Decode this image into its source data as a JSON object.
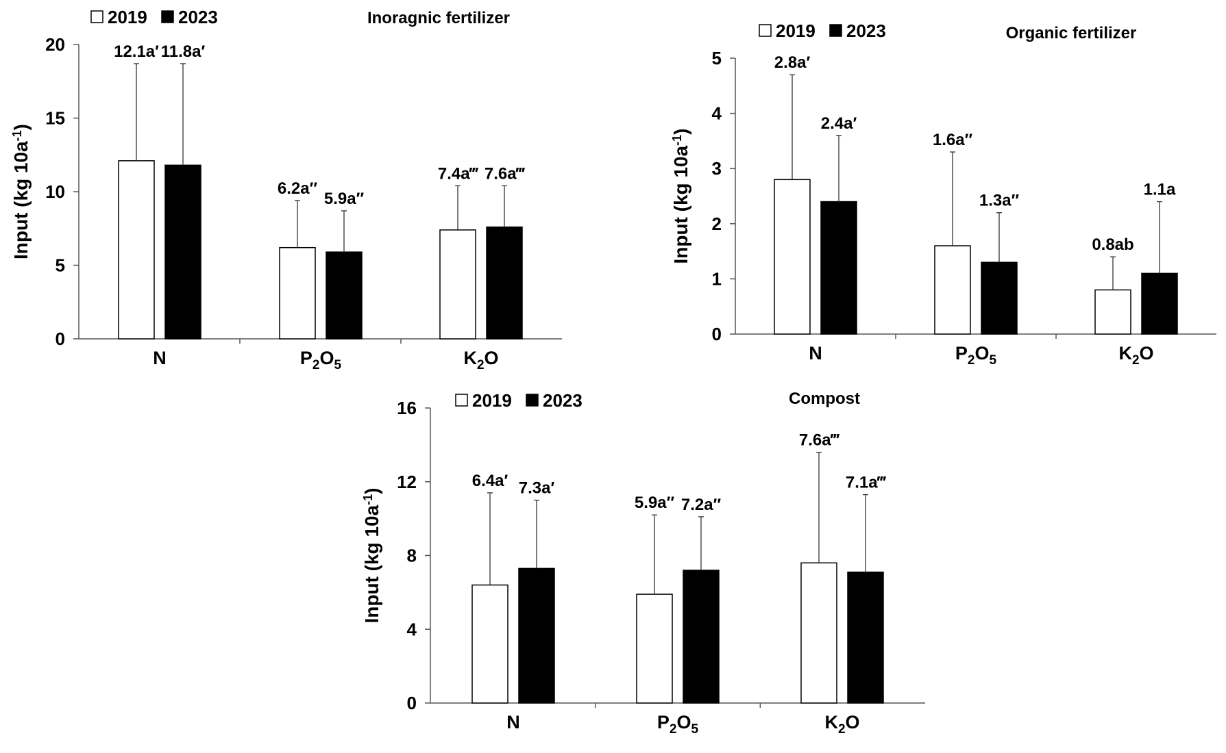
{
  "colors": {
    "y2019": "#ffffff",
    "y2023": "#000000",
    "stroke": "#000000",
    "axis": "#555555"
  },
  "chart_data": [
    {
      "type": "bar",
      "title": "Inoragnic fertilizer",
      "ylabel": "Input (kg 10a",
      "ylabel_sup": "-1",
      "ylabel_close": ")",
      "ylim": [
        0,
        20
      ],
      "yticks": [
        0,
        5,
        10,
        15,
        20
      ],
      "categories": [
        {
          "base": "N",
          "parts": [
            [
              "N",
              false
            ]
          ]
        },
        {
          "base": "P2O5",
          "parts": [
            [
              "P",
              false
            ],
            [
              "2",
              true
            ],
            [
              "O",
              false
            ],
            [
              "5",
              true
            ]
          ]
        },
        {
          "base": "K2O",
          "parts": [
            [
              "K",
              false
            ],
            [
              "2",
              true
            ],
            [
              "O",
              false
            ]
          ]
        }
      ],
      "series": [
        {
          "name": "2019",
          "values": [
            12.1,
            6.2,
            7.4
          ],
          "errors": [
            6.6,
            3.2,
            3.0
          ],
          "labels": [
            "12.1a′",
            "6.2a″",
            "7.4a‴"
          ]
        },
        {
          "name": "2023",
          "values": [
            11.8,
            5.9,
            7.6
          ],
          "errors": [
            6.9,
            2.8,
            2.8
          ],
          "labels": [
            "11.8a′",
            "5.9a″",
            "7.6a‴"
          ]
        }
      ]
    },
    {
      "type": "bar",
      "title": "Organic fertilizer",
      "ylabel": "Input (kg 10a",
      "ylabel_sup": "-1",
      "ylabel_close": ")",
      "ylim": [
        0,
        5
      ],
      "yticks": [
        0,
        1,
        2,
        3,
        4,
        5
      ],
      "categories": [
        {
          "base": "N",
          "parts": [
            [
              "N",
              false
            ]
          ]
        },
        {
          "base": "P2O5",
          "parts": [
            [
              "P",
              false
            ],
            [
              "2",
              true
            ],
            [
              "O",
              false
            ],
            [
              "5",
              true
            ]
          ]
        },
        {
          "base": "K2O",
          "parts": [
            [
              "K",
              false
            ],
            [
              "2",
              true
            ],
            [
              "O",
              false
            ]
          ]
        }
      ],
      "series": [
        {
          "name": "2019",
          "values": [
            2.8,
            1.6,
            0.8
          ],
          "errors": [
            1.9,
            1.7,
            0.6
          ],
          "labels": [
            "2.8a′",
            "1.6a″",
            "0.8ab"
          ]
        },
        {
          "name": "2023",
          "values": [
            2.4,
            1.3,
            1.1
          ],
          "errors": [
            1.2,
            0.9,
            1.3
          ],
          "labels": [
            "2.4a′",
            "1.3a″",
            "1.1a"
          ]
        }
      ]
    },
    {
      "type": "bar",
      "title": "Compost",
      "ylabel": "Input (kg 10a",
      "ylabel_sup": "-1",
      "ylabel_close": ")",
      "ylim": [
        0,
        16
      ],
      "yticks": [
        0,
        4,
        8,
        12,
        16
      ],
      "categories": [
        {
          "base": "N",
          "parts": [
            [
              "N",
              false
            ]
          ]
        },
        {
          "base": "P2O5",
          "parts": [
            [
              "P",
              false
            ],
            [
              "2",
              true
            ],
            [
              "O",
              false
            ],
            [
              "5",
              true
            ]
          ]
        },
        {
          "base": "K2O",
          "parts": [
            [
              "K",
              false
            ],
            [
              "2",
              true
            ],
            [
              "O",
              false
            ]
          ]
        }
      ],
      "series": [
        {
          "name": "2019",
          "values": [
            6.4,
            5.9,
            7.6
          ],
          "errors": [
            5.0,
            4.3,
            6.0
          ],
          "labels": [
            "6.4a′",
            "5.9a″",
            "7.6a‴"
          ]
        },
        {
          "name": "2023",
          "values": [
            7.3,
            7.2,
            7.1
          ],
          "errors": [
            3.7,
            2.9,
            4.2
          ],
          "labels": [
            "7.3a′",
            "7.2a″",
            "7.1a‴"
          ]
        }
      ]
    }
  ]
}
